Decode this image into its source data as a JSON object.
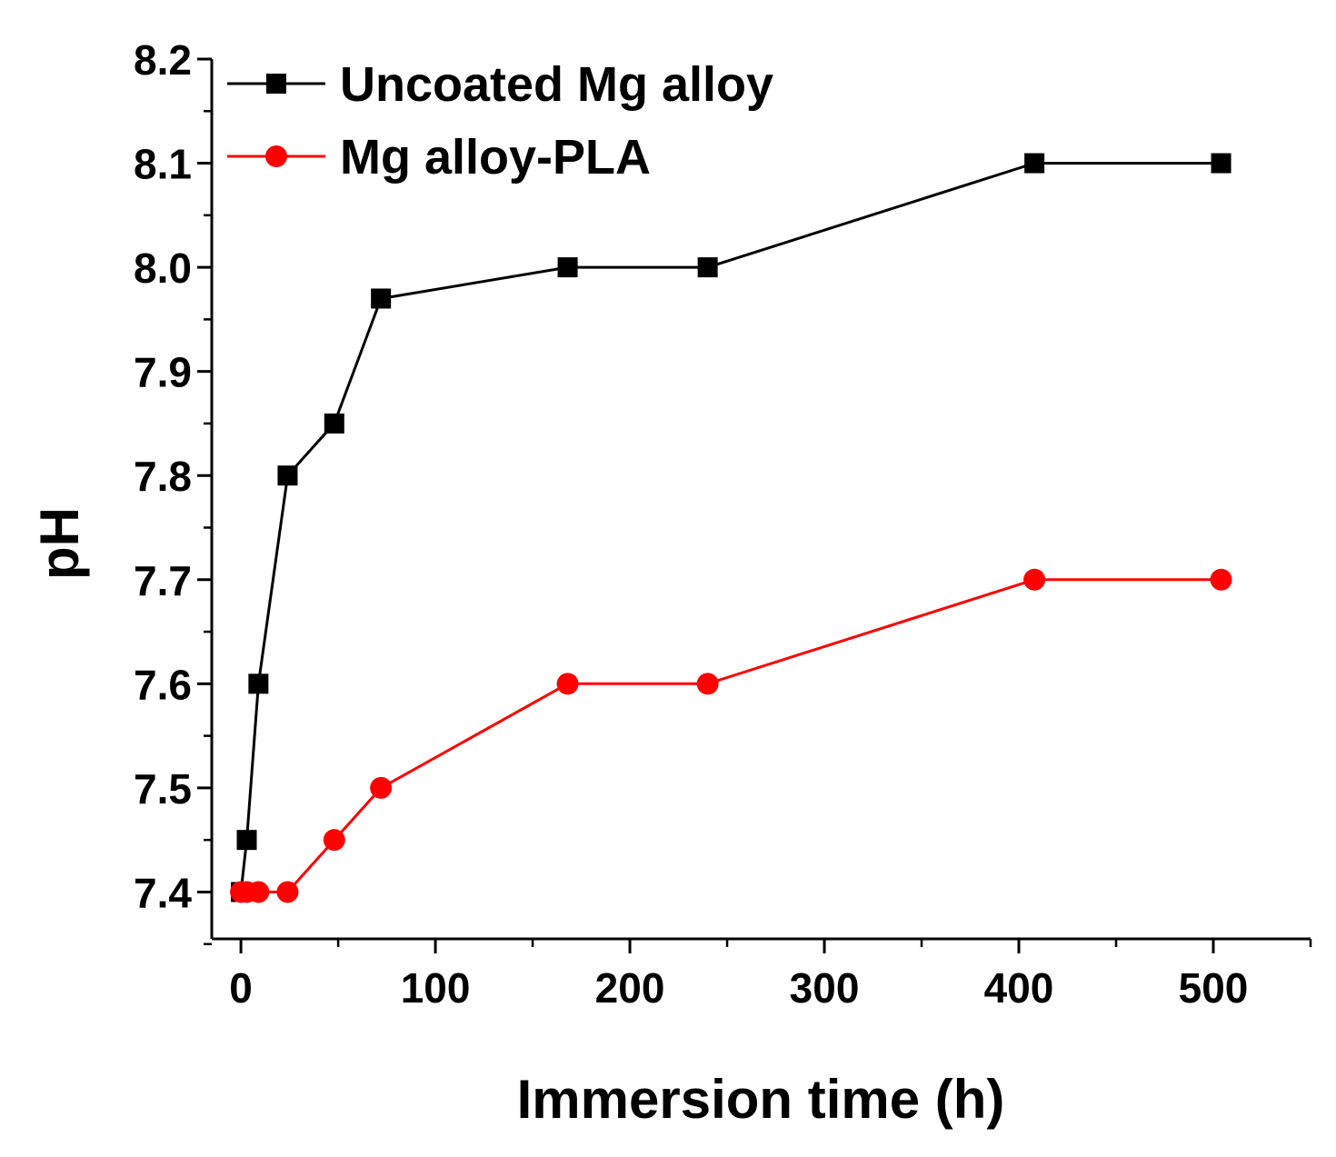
{
  "chart_data": {
    "type": "line",
    "title": "",
    "xlabel": "Immersion time (h)",
    "ylabel": "pH",
    "xlim": [
      -15,
      550
    ],
    "ylim": [
      7.355,
      8.2
    ],
    "xticks": [
      0,
      100,
      200,
      300,
      400,
      500
    ],
    "xtick_labels": [
      "0",
      "100",
      "200",
      "300",
      "400",
      "500"
    ],
    "yticks": [
      7.4,
      7.5,
      7.6,
      7.7,
      7.8,
      7.9,
      8.0,
      8.1,
      8.2
    ],
    "ytick_labels": [
      "7.4",
      "7.5",
      "7.6",
      "7.7",
      "7.8",
      "7.9",
      "8.0",
      "8.1",
      "8.2"
    ],
    "grid": false,
    "legend_position": "top-left",
    "series": [
      {
        "name": "Uncoated Mg alloy",
        "color": "#000000",
        "marker": "square",
        "x": [
          0,
          3,
          9,
          24,
          48,
          72,
          168,
          240,
          408,
          504
        ],
        "y": [
          7.4,
          7.45,
          7.6,
          7.8,
          7.85,
          7.97,
          8.0,
          8.0,
          8.1,
          8.1
        ]
      },
      {
        "name": "Mg alloy-PLA",
        "color": "#ff0000",
        "marker": "circle",
        "x": [
          0,
          3,
          9,
          24,
          48,
          72,
          168,
          240,
          408,
          504
        ],
        "y": [
          7.4,
          7.4,
          7.4,
          7.4,
          7.45,
          7.5,
          7.6,
          7.6,
          7.7,
          7.7
        ]
      }
    ]
  }
}
